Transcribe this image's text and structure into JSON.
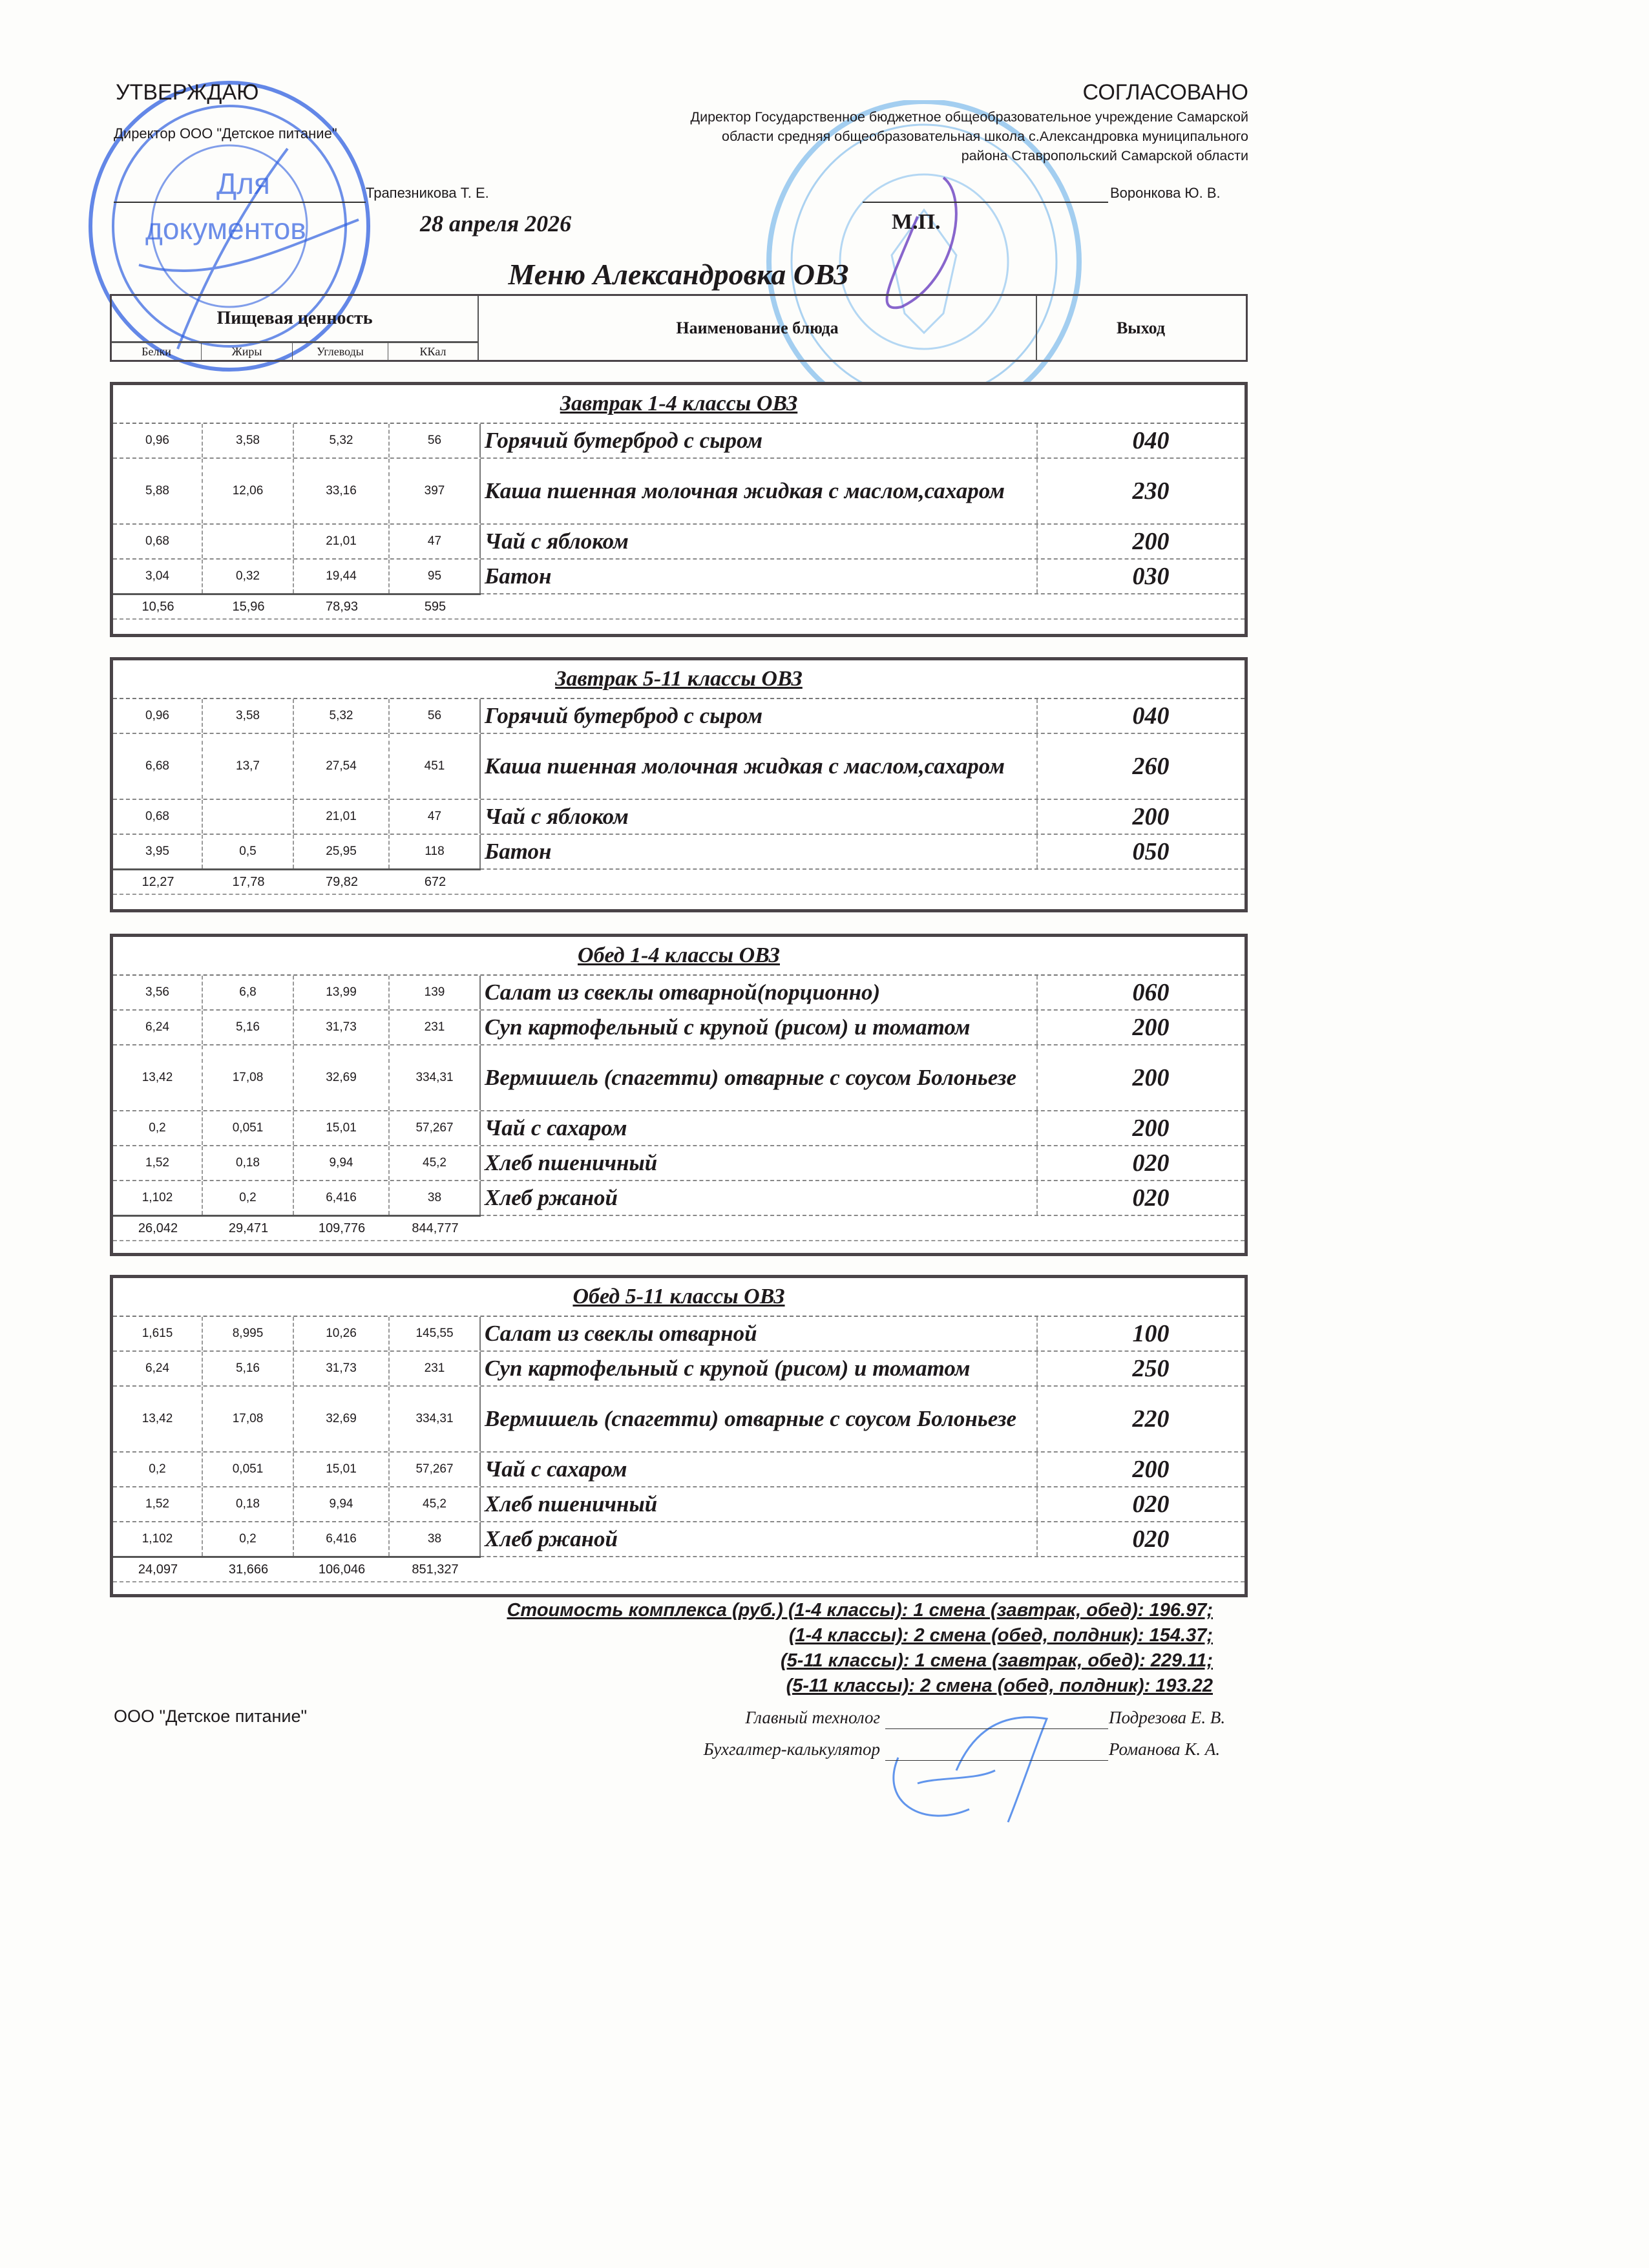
{
  "approve": {
    "heading": "УТВЕРЖДАЮ",
    "position": "Директор ООО \"Детское питание\"",
    "name": "Трапезникова Т. Е."
  },
  "agree": {
    "heading": "СОГЛАСОВАНО",
    "position_lines": [
      "Директор Государственное бюджетное общеобразовательное учреждение Самарской",
      "области средняя общеобразовательная школа с.Александровка муниципального",
      "района Ставропольский Самарской области"
    ],
    "name": "Воронкова Ю. В."
  },
  "date": "28 апреля 2026",
  "seal_label": "М.П.",
  "title": "Меню Александровка ОВЗ",
  "header": {
    "nutrition": "Пищевая ценность",
    "proteins": "Белки",
    "fats": "Жиры",
    "carbs": "Углеводы",
    "kcal": "ККал",
    "dish": "Наименование блюда",
    "yield": "Выход"
  },
  "sections": [
    {
      "title": "Завтрак 1-4 классы ОВЗ",
      "rows": [
        {
          "p": "0,96",
          "f": "3,58",
          "c": "5,32",
          "k": "56",
          "name": "Горячий бутерброд с сыром",
          "y": "040"
        },
        {
          "p": "5,88",
          "f": "12,06",
          "c": "33,16",
          "k": "397",
          "name": "Каша пшенная  молочная жидкая с маслом,сахаром",
          "y": "230",
          "tall": true
        },
        {
          "p": "0,68",
          "f": "",
          "c": "21,01",
          "k": "47",
          "name": "Чай с яблоком",
          "y": "200"
        },
        {
          "p": "3,04",
          "f": "0,32",
          "c": "19,44",
          "k": "95",
          "name": "Батон",
          "y": "030"
        }
      ],
      "total": {
        "p": "10,56",
        "f": "15,96",
        "c": "78,93",
        "k": "595"
      }
    },
    {
      "title": "Завтрак 5-11 классы ОВЗ",
      "rows": [
        {
          "p": "0,96",
          "f": "3,58",
          "c": "5,32",
          "k": "56",
          "name": "Горячий бутерброд с сыром",
          "y": "040"
        },
        {
          "p": "6,68",
          "f": "13,7",
          "c": "27,54",
          "k": "451",
          "name": "Каша пшенная  молочная жидкая с маслом,сахаром",
          "y": "260",
          "tall": true
        },
        {
          "p": "0,68",
          "f": "",
          "c": "21,01",
          "k": "47",
          "name": "Чай с яблоком",
          "y": "200"
        },
        {
          "p": "3,95",
          "f": "0,5",
          "c": "25,95",
          "k": "118",
          "name": "Батон",
          "y": "050"
        }
      ],
      "total": {
        "p": "12,27",
        "f": "17,78",
        "c": "79,82",
        "k": "672"
      }
    },
    {
      "title": "Обед 1-4 классы ОВЗ",
      "rows": [
        {
          "p": "3,56",
          "f": "6,8",
          "c": "13,99",
          "k": "139",
          "name": "Салат из свеклы  отварной(порционно)",
          "y": "060"
        },
        {
          "p": "6,24",
          "f": "5,16",
          "c": "31,73",
          "k": "231",
          "name": "Суп картофельный с крупой (рисом) и томатом",
          "y": "200"
        },
        {
          "p": "13,42",
          "f": "17,08",
          "c": "32,69",
          "k": "334,31",
          "name": "Вермишель (спагетти) отварные с соусом Болоньезе",
          "y": "200",
          "tall": true
        },
        {
          "p": "0,2",
          "f": "0,051",
          "c": "15,01",
          "k": "57,267",
          "name": "Чай с сахаром",
          "y": "200"
        },
        {
          "p": "1,52",
          "f": "0,18",
          "c": "9,94",
          "k": "45,2",
          "name": "Хлеб пшеничный",
          "y": "020"
        },
        {
          "p": "1,102",
          "f": "0,2",
          "c": "6,416",
          "k": "38",
          "name": "Хлеб ржаной",
          "y": "020"
        }
      ],
      "total": {
        "p": "26,042",
        "f": "29,471",
        "c": "109,776",
        "k": "844,777"
      }
    },
    {
      "title": "Обед 5-11 классы ОВЗ",
      "rows": [
        {
          "p": "1,615",
          "f": "8,995",
          "c": "10,26",
          "k": "145,55",
          "name": "Салат из свеклы  отварной",
          "y": "100"
        },
        {
          "p": "6,24",
          "f": "5,16",
          "c": "31,73",
          "k": "231",
          "name": "Суп картофельный с крупой (рисом) и томатом",
          "y": "250"
        },
        {
          "p": "13,42",
          "f": "17,08",
          "c": "32,69",
          "k": "334,31",
          "name": "Вермишель (спагетти) отварные с соусом Болоньезе",
          "y": "220",
          "tall": true
        },
        {
          "p": "0,2",
          "f": "0,051",
          "c": "15,01",
          "k": "57,267",
          "name": "Чай с сахаром",
          "y": "200"
        },
        {
          "p": "1,52",
          "f": "0,18",
          "c": "9,94",
          "k": "45,2",
          "name": "Хлеб пшеничный",
          "y": "020"
        },
        {
          "p": "1,102",
          "f": "0,2",
          "c": "6,416",
          "k": "38",
          "name": "Хлеб ржаной",
          "y": "020"
        }
      ],
      "total": {
        "p": "24,097",
        "f": "31,666",
        "c": "106,046",
        "k": "851,327"
      }
    }
  ],
  "cost_lines": [
    "Стоимость комплекса (руб.) (1-4 классы): 1 смена (завтрак, обед): 196.97;",
    "(1-4 классы): 2 смена (обед, полдник): 154.37;",
    "(5-11 классы): 1 смена (завтрак, обед): 229.11;",
    "(5-11 классы): 2 смена (обед, полдник): 193.22"
  ],
  "footer": {
    "org": "ООО \"Детское питание\"",
    "technologist_label": "Главный технолог",
    "technologist_name": "Подрезова Е. В.",
    "accountant_label": "Бухгалтер-калькулятор",
    "accountant_name": "Романова К. А."
  },
  "stamps": {
    "left_text": "Для документов",
    "color_left": "#2f5fe0",
    "color_right": "#5aa8e8",
    "signature_color": "#6a3fc0"
  }
}
